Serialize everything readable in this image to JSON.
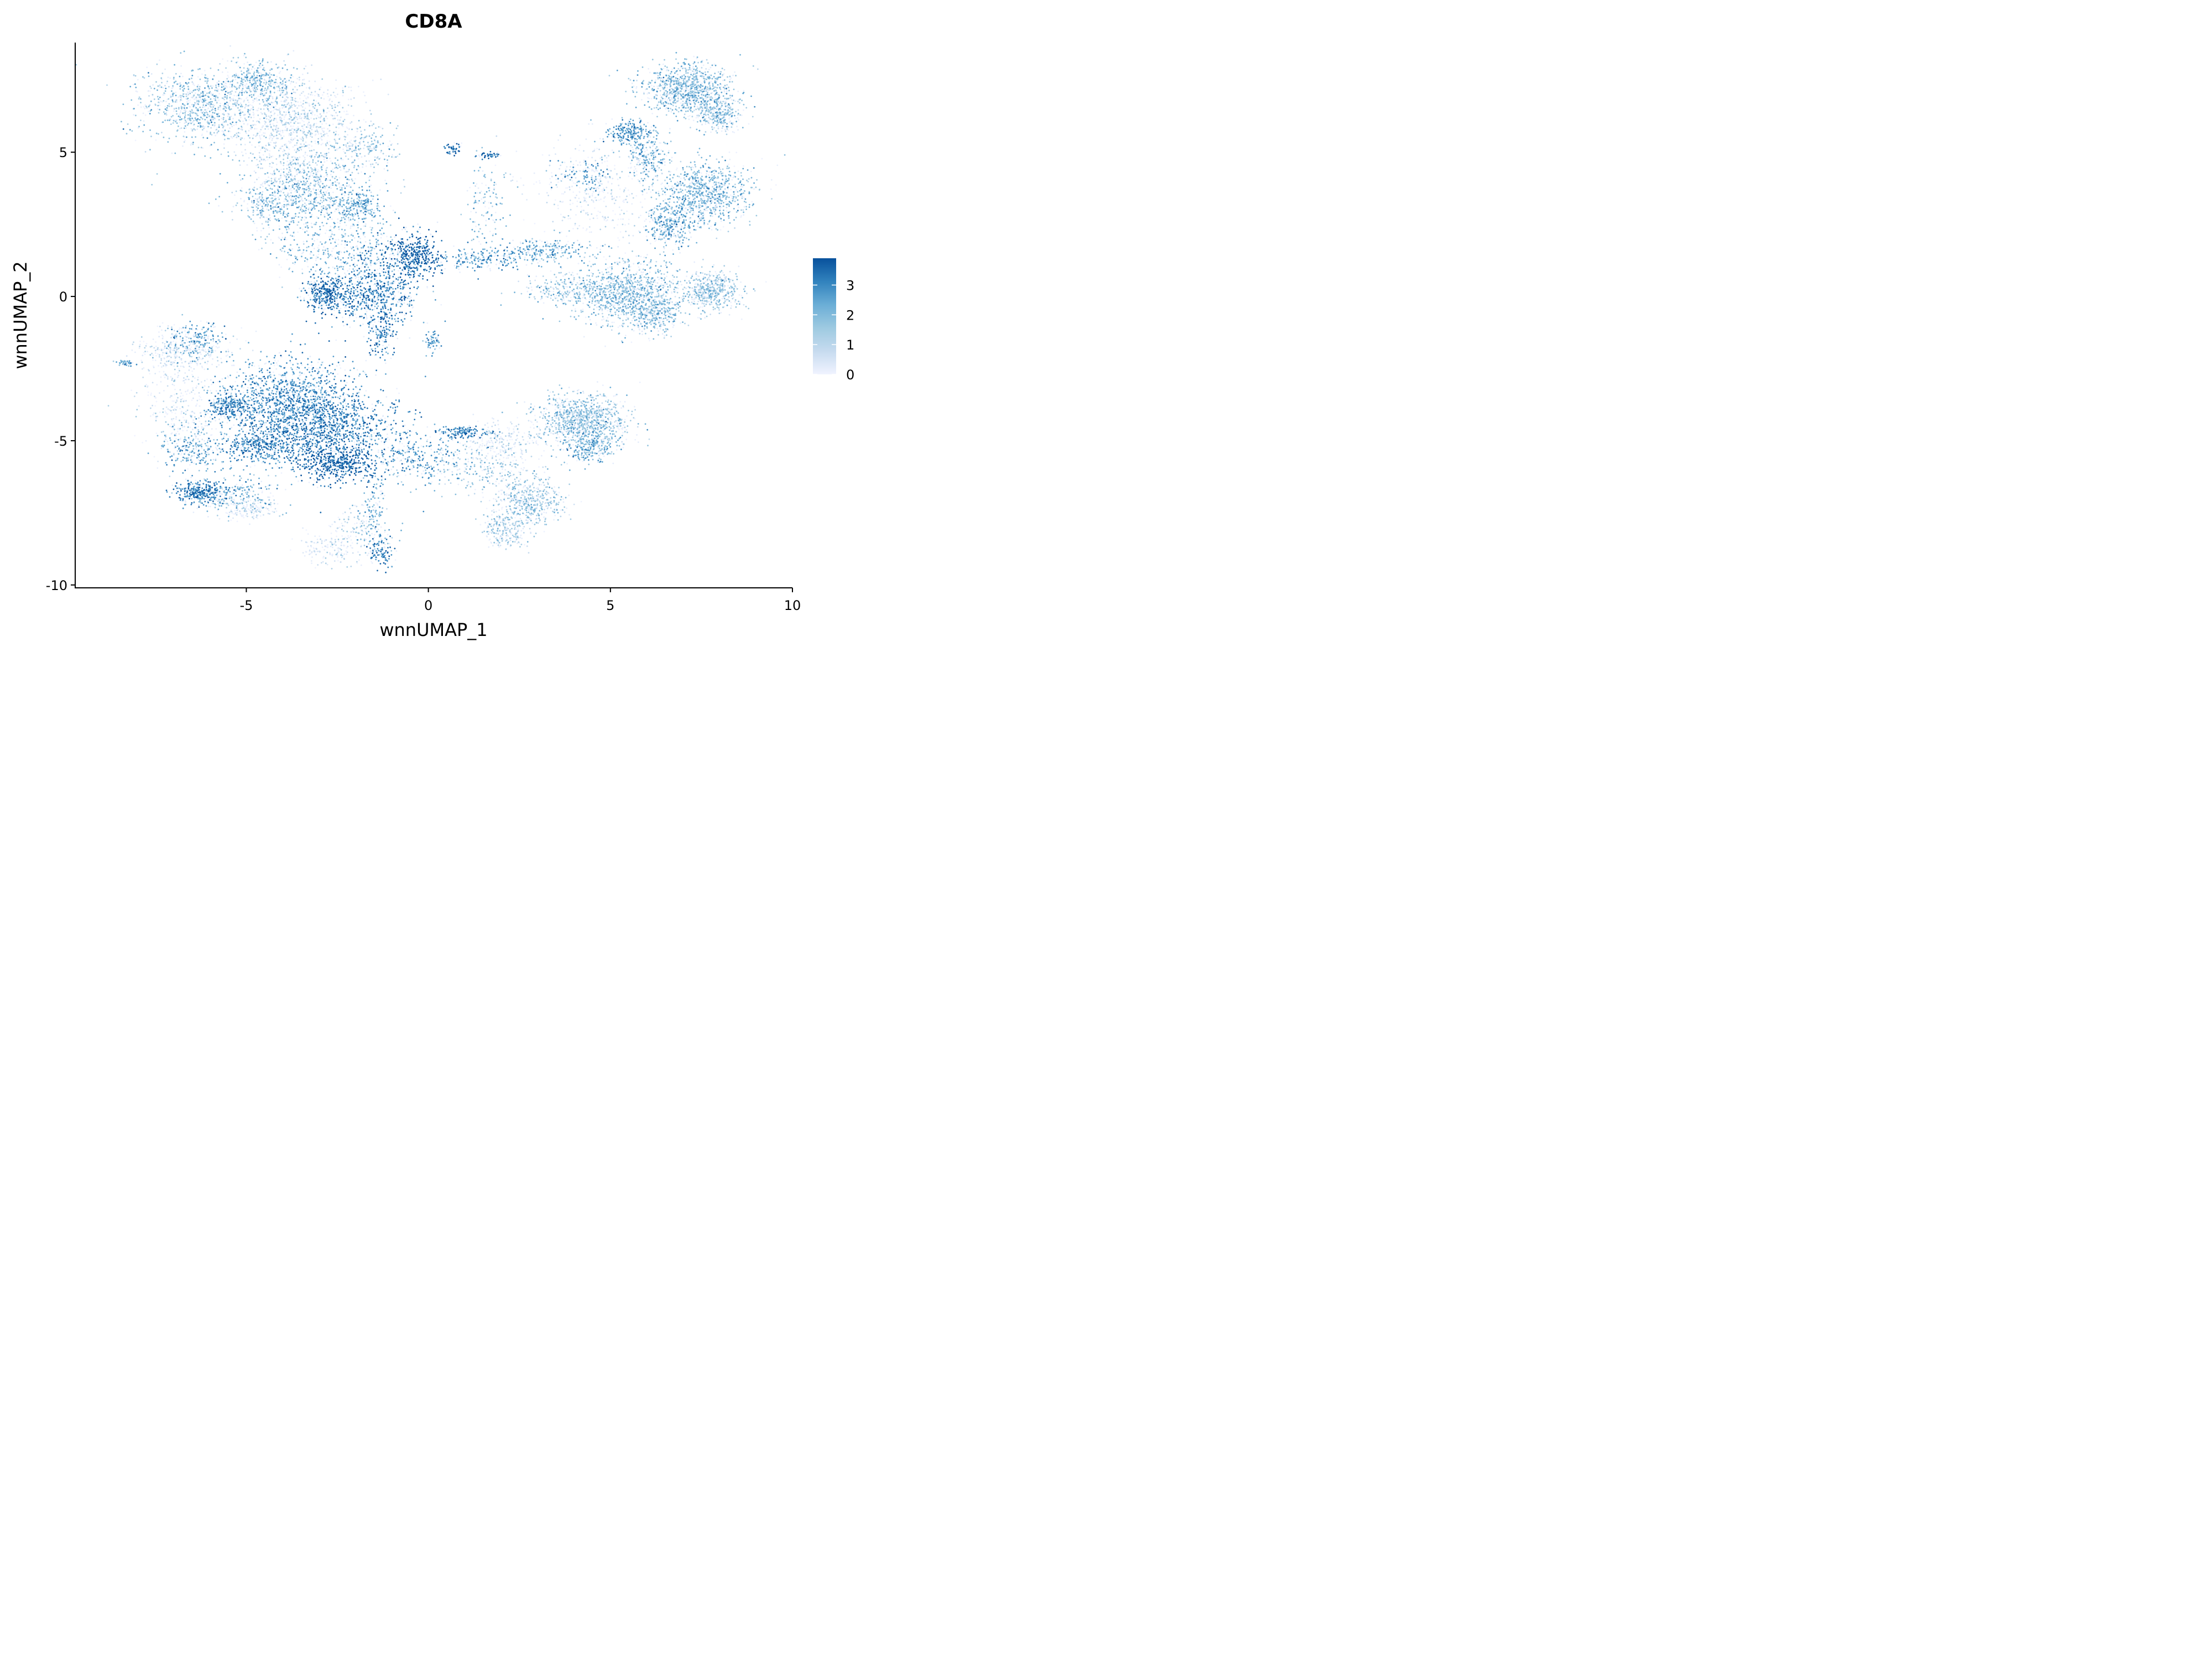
{
  "chart_data": {
    "type": "scatter",
    "title": "CD8A",
    "xlabel": "wnnUMAP_1",
    "ylabel": "wnnUMAP_2",
    "xlim": [
      -9.7,
      10
    ],
    "ylim": [
      -10.1,
      8.8
    ],
    "x_ticks": [
      -5,
      0,
      5,
      10
    ],
    "x_tick_labels": [
      "-5",
      "0",
      "5",
      "10"
    ],
    "y_ticks": [
      -10,
      -5,
      0,
      5
    ],
    "y_tick_labels": [
      "-10",
      "-5",
      "0",
      "5"
    ],
    "grid": false,
    "legend": {
      "type": "colorbar",
      "position": "right",
      "range": [
        0,
        3.9
      ],
      "ticks": [
        0,
        1,
        2,
        3
      ],
      "tick_labels": [
        "0",
        "1",
        "2",
        "3"
      ],
      "color_low": "#f0f3ff",
      "color_high": "#0b4e98"
    },
    "colormap": [
      "#f0f3ff",
      "#c6dbef",
      "#9ecae1",
      "#6baed6",
      "#3182bd",
      "#08519c"
    ],
    "clusters": [
      {
        "x": -6.2,
        "y": 6.6,
        "sx": 0.9,
        "sy": 0.65,
        "n": 900,
        "expr": 1.7
      },
      {
        "x": -4.6,
        "y": 7.4,
        "sx": 0.5,
        "sy": 0.4,
        "n": 350,
        "expr": 1.9
      },
      {
        "x": -4.2,
        "y": 6.0,
        "sx": 0.8,
        "sy": 0.7,
        "n": 450,
        "expr": 0.6
      },
      {
        "x": -3.2,
        "y": 6.3,
        "sx": 0.7,
        "sy": 0.6,
        "n": 350,
        "expr": 0.9
      },
      {
        "x": -1.8,
        "y": 5.2,
        "sx": 0.5,
        "sy": 0.4,
        "n": 200,
        "expr": 1.6
      },
      {
        "x": -3.5,
        "y": 4.3,
        "sx": 0.7,
        "sy": 0.6,
        "n": 400,
        "expr": 1.2
      },
      {
        "x": -3.2,
        "y": 3.3,
        "sx": 0.9,
        "sy": 0.7,
        "n": 700,
        "expr": 2.0
      },
      {
        "x": -1.9,
        "y": 3.1,
        "sx": 0.3,
        "sy": 0.3,
        "n": 200,
        "expr": 2.4
      },
      {
        "x": -4.5,
        "y": 3.2,
        "sx": 0.4,
        "sy": 0.3,
        "n": 150,
        "expr": 1.5
      },
      {
        "x": -2.3,
        "y": 1.6,
        "sx": 0.9,
        "sy": 0.5,
        "n": 400,
        "expr": 2.1
      },
      {
        "x": -2.8,
        "y": 0.1,
        "sx": 0.3,
        "sy": 0.3,
        "n": 350,
        "expr": 3.4
      },
      {
        "x": -1.5,
        "y": 0.1,
        "sx": 0.6,
        "sy": 0.6,
        "n": 700,
        "expr": 3.1
      },
      {
        "x": -0.4,
        "y": 1.4,
        "sx": 0.35,
        "sy": 0.4,
        "n": 450,
        "expr": 3.6
      },
      {
        "x": -1.3,
        "y": -1.3,
        "sx": 0.2,
        "sy": 0.4,
        "n": 150,
        "expr": 3.0
      },
      {
        "x": 0.1,
        "y": -1.6,
        "sx": 0.1,
        "sy": 0.2,
        "n": 60,
        "expr": 2.5
      },
      {
        "x": 0.7,
        "y": 5.1,
        "sx": 0.1,
        "sy": 0.1,
        "n": 50,
        "expr": 3.3
      },
      {
        "x": 1.7,
        "y": 4.9,
        "sx": 0.2,
        "sy": 0.04,
        "n": 40,
        "expr": 3.3
      },
      {
        "x": 1.6,
        "y": 3.0,
        "sx": 0.3,
        "sy": 0.9,
        "n": 130,
        "expr": 2.0
      },
      {
        "x": 1.5,
        "y": 1.3,
        "sx": 0.8,
        "sy": 0.2,
        "n": 250,
        "expr": 2.6
      },
      {
        "x": 3.2,
        "y": 1.6,
        "sx": 0.6,
        "sy": 0.2,
        "n": 220,
        "expr": 2.3
      },
      {
        "x": 4.6,
        "y": 3.5,
        "sx": 1.0,
        "sy": 0.9,
        "n": 380,
        "expr": 0.3
      },
      {
        "x": 4.3,
        "y": 4.2,
        "sx": 0.35,
        "sy": 0.3,
        "n": 120,
        "expr": 2.7
      },
      {
        "x": 5.5,
        "y": 5.7,
        "sx": 0.3,
        "sy": 0.2,
        "n": 220,
        "expr": 2.6
      },
      {
        "x": 6.0,
        "y": 4.9,
        "sx": 0.3,
        "sy": 0.4,
        "n": 250,
        "expr": 2.0
      },
      {
        "x": 7.1,
        "y": 7.2,
        "sx": 0.6,
        "sy": 0.45,
        "n": 1000,
        "expr": 1.8
      },
      {
        "x": 8.0,
        "y": 6.3,
        "sx": 0.3,
        "sy": 0.3,
        "n": 300,
        "expr": 1.6
      },
      {
        "x": 7.6,
        "y": 3.6,
        "sx": 0.65,
        "sy": 0.55,
        "n": 900,
        "expr": 1.9
      },
      {
        "x": 6.6,
        "y": 2.5,
        "sx": 0.35,
        "sy": 0.4,
        "n": 350,
        "expr": 2.1
      },
      {
        "x": 5.4,
        "y": 0.1,
        "sx": 0.8,
        "sy": 0.55,
        "n": 1100,
        "expr": 1.8
      },
      {
        "x": 6.2,
        "y": -0.6,
        "sx": 0.4,
        "sy": 0.35,
        "n": 300,
        "expr": 1.7
      },
      {
        "x": 7.8,
        "y": 0.2,
        "sx": 0.4,
        "sy": 0.35,
        "n": 500,
        "expr": 1.5
      },
      {
        "x": 3.8,
        "y": 0.2,
        "sx": 0.6,
        "sy": 0.3,
        "n": 200,
        "expr": 1.6
      },
      {
        "x": -6.8,
        "y": -1.9,
        "sx": 0.6,
        "sy": 0.4,
        "n": 300,
        "expr": 0.6
      },
      {
        "x": -6.3,
        "y": -1.5,
        "sx": 0.35,
        "sy": 0.3,
        "n": 200,
        "expr": 2.4
      },
      {
        "x": -8.3,
        "y": -2.3,
        "sx": 0.12,
        "sy": 0.05,
        "n": 40,
        "expr": 2.2
      },
      {
        "x": -3.9,
        "y": -3.5,
        "sx": 0.9,
        "sy": 0.7,
        "n": 1200,
        "expr": 2.7
      },
      {
        "x": -2.8,
        "y": -4.6,
        "sx": 1.0,
        "sy": 0.7,
        "n": 1400,
        "expr": 3.1
      },
      {
        "x": -2.5,
        "y": -5.8,
        "sx": 0.5,
        "sy": 0.3,
        "n": 500,
        "expr": 3.6
      },
      {
        "x": -4.6,
        "y": -5.2,
        "sx": 0.5,
        "sy": 0.3,
        "n": 400,
        "expr": 2.9
      },
      {
        "x": -5.5,
        "y": -3.8,
        "sx": 0.3,
        "sy": 0.25,
        "n": 250,
        "expr": 3.0
      },
      {
        "x": -6.8,
        "y": -3.8,
        "sx": 0.6,
        "sy": 0.8,
        "n": 300,
        "expr": 0.5
      },
      {
        "x": -6.5,
        "y": -5.3,
        "sx": 0.5,
        "sy": 0.4,
        "n": 250,
        "expr": 2.3
      },
      {
        "x": -6.3,
        "y": -6.8,
        "sx": 0.35,
        "sy": 0.2,
        "n": 350,
        "expr": 3.1
      },
      {
        "x": -5.3,
        "y": -6.9,
        "sx": 0.6,
        "sy": 0.3,
        "n": 200,
        "expr": 2.0
      },
      {
        "x": -5.0,
        "y": -7.4,
        "sx": 0.4,
        "sy": 0.2,
        "n": 150,
        "expr": 0.5
      },
      {
        "x": -1.8,
        "y": -8.0,
        "sx": 0.4,
        "sy": 0.4,
        "n": 140,
        "expr": 1.4
      },
      {
        "x": -1.3,
        "y": -8.8,
        "sx": 0.2,
        "sy": 0.3,
        "n": 120,
        "expr": 3.0
      },
      {
        "x": -2.7,
        "y": -8.7,
        "sx": 0.4,
        "sy": 0.3,
        "n": 150,
        "expr": 0.5
      },
      {
        "x": -1.5,
        "y": -7.3,
        "sx": 0.15,
        "sy": 0.6,
        "n": 80,
        "expr": 2.3
      },
      {
        "x": -0.2,
        "y": -5.6,
        "sx": 0.7,
        "sy": 0.5,
        "n": 300,
        "expr": 2.5
      },
      {
        "x": 1.0,
        "y": -4.7,
        "sx": 0.4,
        "sy": 0.1,
        "n": 150,
        "expr": 3.0
      },
      {
        "x": 1.8,
        "y": -6.0,
        "sx": 0.7,
        "sy": 0.5,
        "n": 250,
        "expr": 1.5
      },
      {
        "x": 2.0,
        "y": -5.0,
        "sx": 0.5,
        "sy": 0.4,
        "n": 200,
        "expr": 0.4
      },
      {
        "x": 4.2,
        "y": -4.3,
        "sx": 0.6,
        "sy": 0.45,
        "n": 1000,
        "expr": 1.6
      },
      {
        "x": 4.4,
        "y": -5.2,
        "sx": 0.35,
        "sy": 0.3,
        "n": 250,
        "expr": 2.2
      },
      {
        "x": 2.8,
        "y": -7.1,
        "sx": 0.5,
        "sy": 0.4,
        "n": 450,
        "expr": 1.4
      },
      {
        "x": 2.1,
        "y": -8.1,
        "sx": 0.3,
        "sy": 0.3,
        "n": 220,
        "expr": 1.2
      }
    ]
  }
}
